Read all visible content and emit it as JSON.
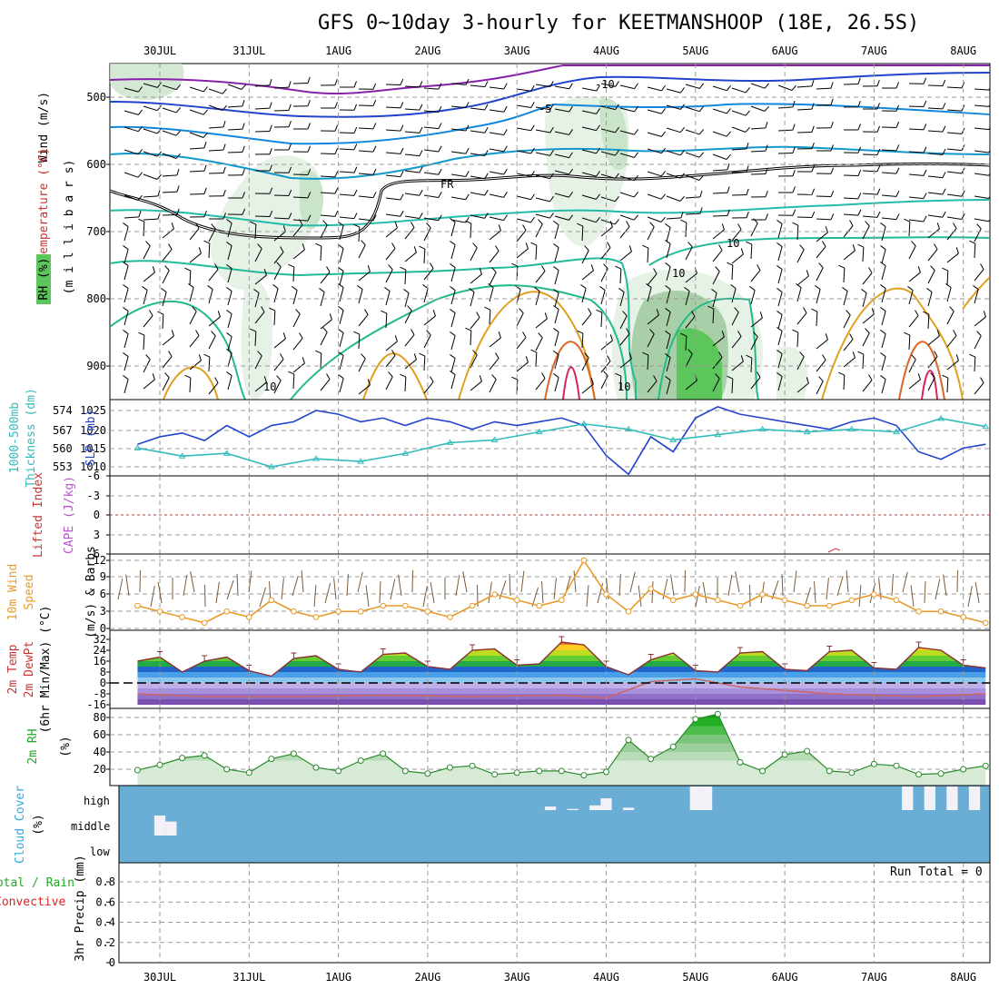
{
  "title": "GFS 0~10day 3-hourly for KEETMANSHOOP (18E, 26.5S)",
  "dates": [
    "30JUL",
    "31JUL",
    "1AUG",
    "2AUG",
    "3AUG",
    "4AUG",
    "5AUG",
    "6AUG",
    "7AUG",
    "8AUG"
  ],
  "colors": {
    "wind_barb": "#000000",
    "rh_fill_light": "#e8f3e8",
    "rh_fill_mid": "#c9e4c9",
    "rh_fill_dark": "#5cc65c",
    "freezing_line": "#000000",
    "slp_line": "#2244cc",
    "thickness_line": "#33bbbb",
    "lifted_index_zero": "#dd3333",
    "wind10_speed": "#e89a2a",
    "wind10_barbs": "#7a5a3a",
    "cloud_bg": "#6aaed6",
    "cloud_high": "#f4f0f8",
    "rh2m_fill": "#cfe6cf",
    "rh2m_line": "#2a8a2a",
    "precip_total": "#22aa22",
    "precip_convective": "#dd2222"
  },
  "panels": {
    "upper_air": {
      "ylabel_wind": "Wind (m/s)",
      "ylabel_temp": "Temperature (°C)",
      "ylabel_rh": "RH (%)",
      "ylabel_p": "(m i l l i b a r s)",
      "p_ticks": [
        "500",
        "600",
        "700",
        "800",
        "900"
      ],
      "contour_labels": [
        "-10",
        "-5",
        "10",
        "FR",
        "10",
        "10",
        "10"
      ]
    },
    "slp": {
      "ylabel_thick": "1000-500mb",
      "ylabel_thick2": "Thickness (dm)",
      "ylabel_slp": "SLP (mb)",
      "thick_ticks": [
        "574",
        "567",
        "560",
        "553"
      ],
      "slp_ticks": [
        "1025",
        "1020",
        "1015",
        "1010"
      ]
    },
    "stability": {
      "ylabel_li": "Lifted Index",
      "ylabel_cape": "CAPE (J/kg)",
      "li_ticks": [
        "-6",
        "-3",
        "0",
        "3",
        "6"
      ]
    },
    "wind10": {
      "ylabel1": "10m Wind",
      "ylabel2": "Speed",
      "ylabel3": "(m/s) & Barbs",
      "ticks": [
        "12",
        "9",
        "6",
        "3",
        "0"
      ]
    },
    "temp2m": {
      "ylabel1": "2m Temp",
      "ylabel2": "2m DewPt",
      "ylabel3": "(6hr Min/Max) (°C)",
      "ticks": [
        "32",
        "24",
        "16",
        "8",
        "0",
        "-8",
        "-16"
      ]
    },
    "rh2m": {
      "ylabel1": "2m RH",
      "ylabel2": "(%)",
      "ticks": [
        "80",
        "60",
        "40",
        "20"
      ]
    },
    "cloud": {
      "ylabel1": "Cloud Cover",
      "ylabel2": "(%)",
      "levels": [
        "high",
        "middle",
        "low"
      ]
    },
    "precip": {
      "ylabel1": "Total / Rain",
      "ylabel2": "Convective",
      "ylabel3": "3hr Precip (mm)",
      "ticks": [
        "0.8",
        "0.6",
        "0.4",
        "0.2",
        "0"
      ],
      "run_total": "Run Total = 0"
    }
  },
  "chart_data": [
    {
      "type": "line",
      "name": "SLP (mb)",
      "x": [
        "29JUL18Z",
        "30JUL00Z",
        "30JUL06Z",
        "30JUL12Z",
        "30JUL18Z",
        "31JUL00Z",
        "31JUL06Z",
        "31JUL12Z",
        "31JUL18Z",
        "1AUG00Z",
        "1AUG06Z",
        "1AUG12Z",
        "1AUG18Z",
        "2AUG00Z",
        "2AUG06Z",
        "2AUG12Z",
        "2AUG18Z",
        "3AUG00Z",
        "3AUG06Z",
        "3AUG12Z",
        "3AUG18Z",
        "4AUG00Z",
        "4AUG06Z",
        "4AUG12Z",
        "4AUG18Z",
        "5AUG00Z",
        "5AUG06Z",
        "5AUG12Z",
        "5AUG18Z",
        "6AUG00Z",
        "6AUG06Z",
        "6AUG12Z",
        "6AUG18Z",
        "7AUG00Z",
        "7AUG06Z",
        "7AUG12Z",
        "7AUG18Z",
        "8AUG00Z",
        "8AUG06Z"
      ],
      "values": [
        1016,
        1018,
        1019,
        1017,
        1021,
        1018,
        1021,
        1022,
        1025,
        1024,
        1022,
        1023,
        1021,
        1023,
        1022,
        1020,
        1022,
        1021,
        1022,
        1023,
        1021,
        1013,
        1008,
        1018,
        1014,
        1023,
        1026,
        1024,
        1023,
        1022,
        1021,
        1020,
        1022,
        1023,
        1021,
        1014,
        1012,
        1015,
        1016
      ],
      "ylim": [
        1007,
        1028
      ]
    },
    {
      "type": "line",
      "name": "1000-500mb Thickness (dm)",
      "x": [
        "29JUL18Z",
        "30JUL06Z",
        "30JUL18Z",
        "31JUL06Z",
        "31JUL18Z",
        "1AUG06Z",
        "1AUG18Z",
        "2AUG06Z",
        "2AUG18Z",
        "3AUG06Z",
        "3AUG18Z",
        "4AUG06Z",
        "4AUG18Z",
        "5AUG06Z",
        "5AUG18Z",
        "6AUG06Z",
        "6AUG18Z",
        "7AUG06Z",
        "7AUG18Z",
        "8AUG06Z"
      ],
      "values": [
        560,
        557,
        558,
        553,
        556,
        555,
        558,
        562,
        563,
        566,
        569,
        567,
        563,
        565,
        567,
        566,
        567,
        566,
        571,
        568
      ],
      "ylim": [
        550,
        577
      ]
    },
    {
      "type": "line",
      "name": "10m Wind Speed (m/s)",
      "x": [
        "29JUL18Z",
        "30JUL00Z",
        "30JUL06Z",
        "30JUL12Z",
        "30JUL18Z",
        "31JUL00Z",
        "31JUL06Z",
        "31JUL12Z",
        "31JUL18Z",
        "1AUG00Z",
        "1AUG06Z",
        "1AUG12Z",
        "1AUG18Z",
        "2AUG00Z",
        "2AUG06Z",
        "2AUG12Z",
        "2AUG18Z",
        "3AUG00Z",
        "3AUG06Z",
        "3AUG12Z",
        "3AUG18Z",
        "4AUG00Z",
        "4AUG06Z",
        "4AUG12Z",
        "4AUG18Z",
        "5AUG00Z",
        "5AUG06Z",
        "5AUG12Z",
        "5AUG18Z",
        "6AUG00Z",
        "6AUG06Z",
        "6AUG12Z",
        "6AUG18Z",
        "7AUG00Z",
        "7AUG06Z",
        "7AUG12Z",
        "7AUG18Z",
        "8AUG00Z",
        "8AUG06Z"
      ],
      "values": [
        4,
        3,
        2,
        1,
        3,
        2,
        5,
        3,
        2,
        3,
        3,
        4,
        4,
        3,
        2,
        4,
        6,
        5,
        4,
        5,
        12,
        6,
        3,
        7,
        5,
        6,
        5,
        4,
        6,
        5,
        4,
        4,
        5,
        6,
        5,
        3,
        3,
        2,
        1
      ],
      "ylim": [
        0,
        12
      ]
    },
    {
      "type": "area",
      "name": "2m Temp (°C)",
      "x": [
        "29JUL18Z",
        "30JUL00Z",
        "30JUL06Z",
        "30JUL12Z",
        "30JUL18Z",
        "31JUL00Z",
        "31JUL06Z",
        "31JUL12Z",
        "31JUL18Z",
        "1AUG00Z",
        "1AUG06Z",
        "1AUG12Z",
        "1AUG18Z",
        "2AUG00Z",
        "2AUG06Z",
        "2AUG12Z",
        "2AUG18Z",
        "3AUG00Z",
        "3AUG06Z",
        "3AUG12Z",
        "3AUG18Z",
        "4AUG00Z",
        "4AUG06Z",
        "4AUG12Z",
        "4AUG18Z",
        "5AUG00Z",
        "5AUG06Z",
        "5AUG12Z",
        "5AUG18Z",
        "6AUG00Z",
        "6AUG06Z",
        "6AUG12Z",
        "6AUG18Z",
        "7AUG00Z",
        "7AUG06Z",
        "7AUG12Z",
        "7AUG18Z",
        "8AUG00Z",
        "8AUG06Z"
      ],
      "values": [
        16,
        19,
        8,
        16,
        19,
        9,
        5,
        18,
        20,
        10,
        8,
        21,
        22,
        12,
        10,
        24,
        25,
        13,
        14,
        30,
        28,
        12,
        6,
        17,
        22,
        9,
        8,
        22,
        23,
        10,
        9,
        23,
        24,
        11,
        10,
        26,
        24,
        13,
        11
      ],
      "ylim": [
        -16,
        34
      ]
    },
    {
      "type": "line",
      "name": "2m DewPt (°C)",
      "x": [
        "29JUL18Z",
        "30JUL12Z",
        "31JUL12Z",
        "1AUG12Z",
        "2AUG12Z",
        "3AUG12Z",
        "4AUG00Z",
        "4AUG12Z",
        "5AUG00Z",
        "5AUG12Z",
        "6AUG12Z",
        "7AUG12Z",
        "8AUG06Z"
      ],
      "values": [
        -8,
        -10,
        -10,
        -9,
        -10,
        -9,
        -11,
        1,
        3,
        -3,
        -8,
        -10,
        -8
      ],
      "ylim": [
        -16,
        34
      ]
    },
    {
      "type": "area",
      "name": "2m RH (%)",
      "x": [
        "29JUL18Z",
        "30JUL00Z",
        "30JUL06Z",
        "30JUL12Z",
        "30JUL18Z",
        "31JUL00Z",
        "31JUL06Z",
        "31JUL12Z",
        "31JUL18Z",
        "1AUG00Z",
        "1AUG06Z",
        "1AUG12Z",
        "1AUG18Z",
        "2AUG00Z",
        "2AUG06Z",
        "2AUG12Z",
        "2AUG18Z",
        "3AUG00Z",
        "3AUG06Z",
        "3AUG12Z",
        "3AUG18Z",
        "4AUG00Z",
        "4AUG06Z",
        "4AUG12Z",
        "4AUG18Z",
        "5AUG00Z",
        "5AUG06Z",
        "5AUG12Z",
        "5AUG18Z",
        "6AUG00Z",
        "6AUG06Z",
        "6AUG12Z",
        "6AUG18Z",
        "7AUG00Z",
        "7AUG06Z",
        "7AUG12Z",
        "7AUG18Z",
        "8AUG00Z",
        "8AUG06Z"
      ],
      "values": [
        19,
        25,
        33,
        36,
        20,
        16,
        32,
        38,
        22,
        18,
        30,
        38,
        18,
        15,
        22,
        24,
        14,
        16,
        18,
        18,
        13,
        17,
        54,
        32,
        46,
        78,
        84,
        28,
        18,
        37,
        41,
        18,
        16,
        26,
        24,
        14,
        15,
        20,
        24
      ],
      "ylim": [
        10,
        88
      ]
    },
    {
      "type": "bar",
      "name": "High Cloud Cover (%)",
      "x": [
        "3AUG09Z",
        "3AUG15Z",
        "3AUG21Z",
        "4AUG00Z",
        "4AUG06Z",
        "5AUG00Z",
        "5AUG03Z",
        "7AUG09Z",
        "7AUG15Z",
        "7AUG21Z",
        "8AUG03Z"
      ],
      "values": [
        15,
        5,
        20,
        50,
        10,
        100,
        100,
        100,
        100,
        100,
        100
      ],
      "ylim": [
        0,
        100
      ]
    },
    {
      "type": "bar",
      "name": "Middle Cloud Cover (%)",
      "x": [
        "30JUL00Z",
        "30JUL03Z"
      ],
      "values": [
        100,
        70
      ],
      "ylim": [
        0,
        100
      ]
    },
    {
      "type": "bar",
      "name": "3hr Precip (mm)",
      "x": [],
      "values": [],
      "ylim": [
        0,
        0.9
      ]
    }
  ]
}
